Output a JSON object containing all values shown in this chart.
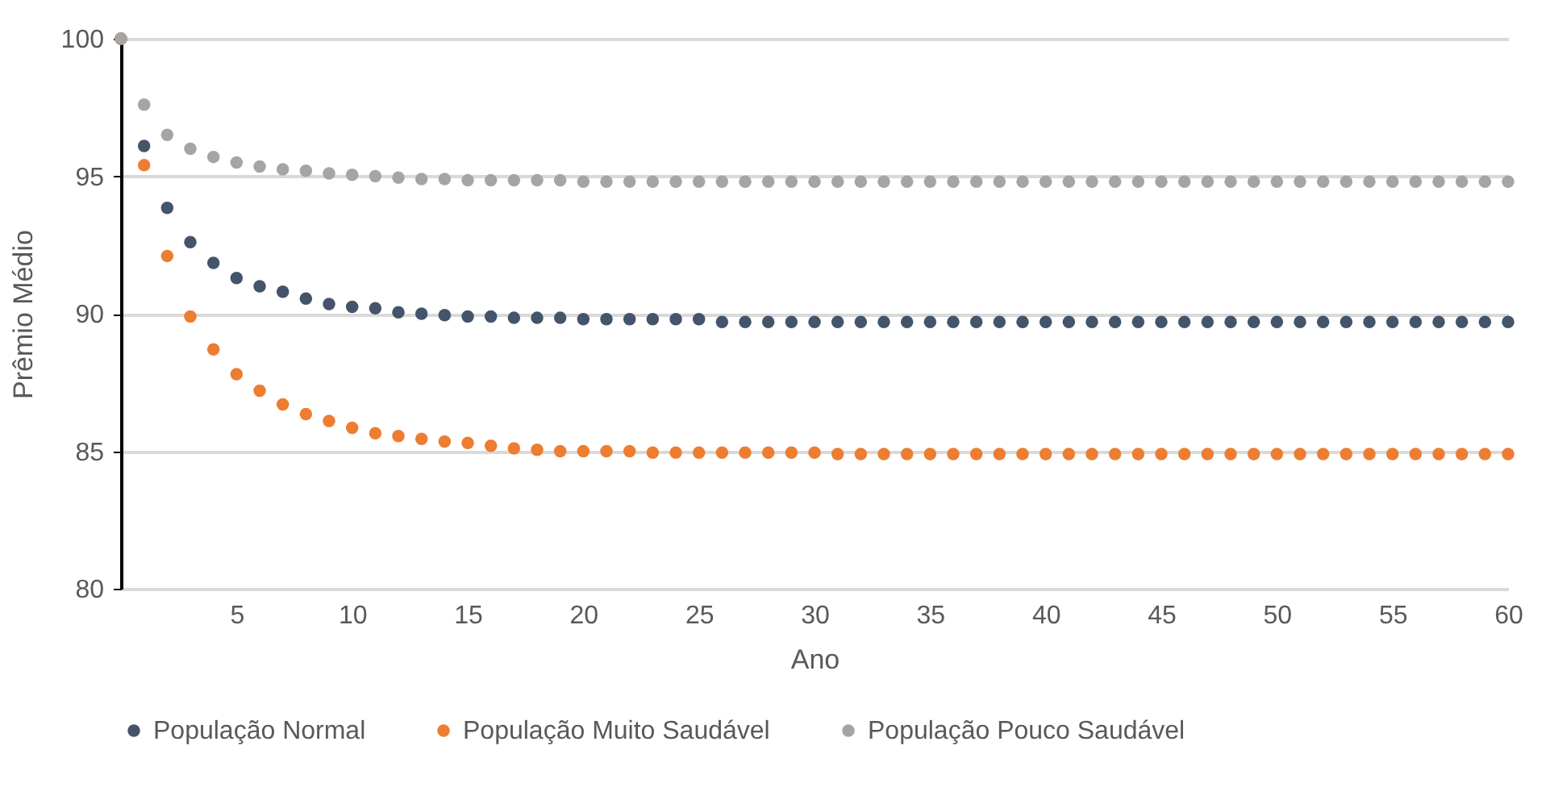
{
  "chart_data": {
    "type": "scatter",
    "xlabel": "Ano",
    "ylabel": "Prêmio Médio",
    "x": [
      0,
      1,
      2,
      3,
      4,
      5,
      6,
      7,
      8,
      9,
      10,
      11,
      12,
      13,
      14,
      15,
      16,
      17,
      18,
      19,
      20,
      21,
      22,
      23,
      24,
      25,
      26,
      27,
      28,
      29,
      30,
      31,
      32,
      33,
      34,
      35,
      36,
      37,
      38,
      39,
      40,
      41,
      42,
      43,
      44,
      45,
      46,
      47,
      48,
      49,
      50,
      51,
      52,
      53,
      54,
      55,
      56,
      57,
      58,
      59,
      60
    ],
    "series": [
      {
        "name": "População Normal",
        "color": "#44546a",
        "values": [
          100,
          96.1,
          93.85,
          92.6,
          91.85,
          91.3,
          91.0,
          90.8,
          90.55,
          90.35,
          90.25,
          90.2,
          90.05,
          90.0,
          89.95,
          89.9,
          89.9,
          89.85,
          89.85,
          89.85,
          89.8,
          89.8,
          89.8,
          89.8,
          89.8,
          89.8,
          89.7,
          89.7,
          89.7,
          89.7,
          89.7,
          89.7,
          89.7,
          89.7,
          89.7,
          89.7,
          89.7,
          89.7,
          89.7,
          89.7,
          89.7,
          89.7,
          89.7,
          89.7,
          89.7,
          89.7,
          89.7,
          89.7,
          89.7,
          89.7,
          89.7,
          89.7,
          89.7,
          89.7,
          89.7,
          89.7,
          89.7,
          89.7,
          89.7,
          89.7,
          89.7
        ]
      },
      {
        "name": "População Muito Saudável",
        "color": "#ed7d31",
        "values": [
          100,
          95.4,
          92.1,
          89.9,
          88.7,
          87.8,
          87.2,
          86.7,
          86.35,
          86.1,
          85.85,
          85.65,
          85.55,
          85.45,
          85.35,
          85.3,
          85.2,
          85.1,
          85.05,
          85.0,
          85.0,
          85.0,
          85.0,
          84.95,
          84.95,
          84.95,
          84.95,
          84.95,
          84.95,
          84.95,
          84.95,
          84.9,
          84.9,
          84.9,
          84.9,
          84.9,
          84.9,
          84.9,
          84.9,
          84.9,
          84.9,
          84.9,
          84.9,
          84.9,
          84.9,
          84.9,
          84.9,
          84.9,
          84.9,
          84.9,
          84.9,
          84.9,
          84.9,
          84.9,
          84.9,
          84.9,
          84.9,
          84.9,
          84.9,
          84.9,
          84.9
        ]
      },
      {
        "name": "População Pouco Saudável",
        "color": "#a5a5a5",
        "values": [
          100,
          97.6,
          96.5,
          96.0,
          95.7,
          95.5,
          95.35,
          95.25,
          95.2,
          95.1,
          95.05,
          95.0,
          94.95,
          94.9,
          94.9,
          94.85,
          94.85,
          94.85,
          94.85,
          94.85,
          94.8,
          94.8,
          94.8,
          94.8,
          94.8,
          94.8,
          94.8,
          94.8,
          94.8,
          94.8,
          94.8,
          94.8,
          94.8,
          94.8,
          94.8,
          94.8,
          94.8,
          94.8,
          94.8,
          94.8,
          94.8,
          94.8,
          94.8,
          94.8,
          94.8,
          94.8,
          94.8,
          94.8,
          94.8,
          94.8,
          94.8,
          94.8,
          94.8,
          94.8,
          94.8,
          94.8,
          94.8,
          94.8,
          94.8,
          94.8,
          94.8
        ]
      }
    ],
    "xlim": [
      0,
      60
    ],
    "xticks": [
      5,
      10,
      15,
      20,
      25,
      30,
      35,
      40,
      45,
      50,
      55,
      60
    ],
    "ylim": [
      80,
      100
    ],
    "yticks": [
      80,
      85,
      90,
      95,
      100
    ],
    "grid": "y",
    "legend": "bottom",
    "marker": "circle"
  }
}
